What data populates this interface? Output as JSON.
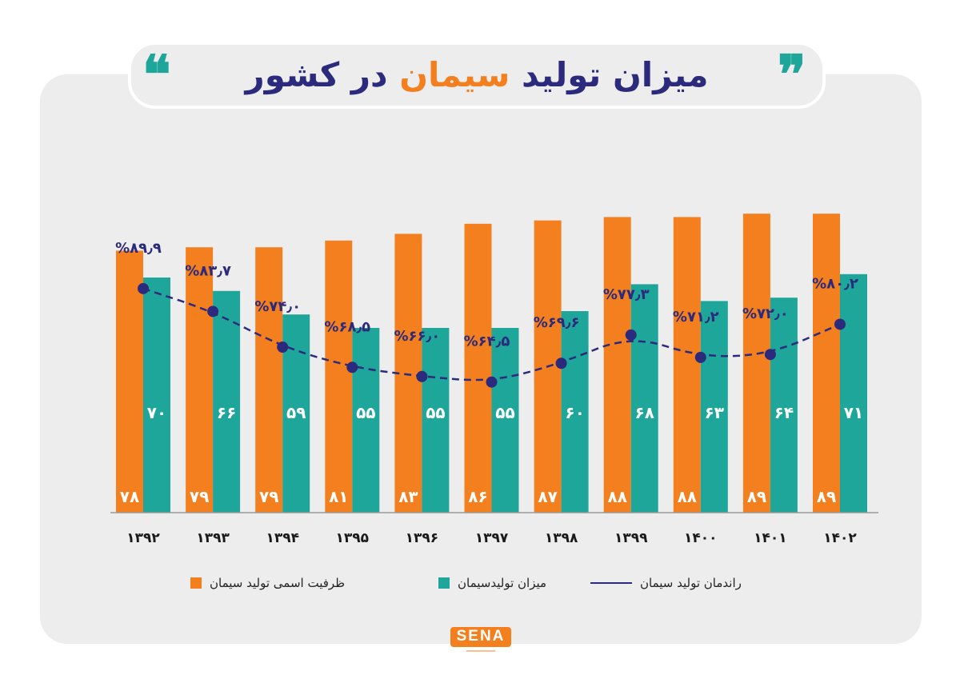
{
  "header": {
    "title_part1": "میزان تولید",
    "title_accent": "سیمان",
    "title_part2": "در کشور",
    "quote_open": "❝",
    "quote_close": "❞"
  },
  "chart_data": {
    "type": "bar",
    "categories": [
      "۱۳۹۲",
      "۱۳۹۳",
      "۱۳۹۴",
      "۱۳۹۵",
      "۱۳۹۶",
      "۱۳۹۷",
      "۱۳۹۸",
      "۱۳۹۹",
      "۱۴۰۰",
      "۱۴۰۱",
      "۱۴۰۲"
    ],
    "series": [
      {
        "name": "ظرفیت اسمی تولید سیمان",
        "color": "#f47f1f",
        "values": [
          78,
          79,
          79,
          81,
          83,
          86,
          87,
          88,
          88,
          89,
          89
        ],
        "labels": [
          "۷۸",
          "۷۹",
          "۷۹",
          "۸۱",
          "۸۳",
          "۸۶",
          "۸۷",
          "۸۸",
          "۸۸",
          "۸۹",
          "۸۹"
        ]
      },
      {
        "name": "میزان تولیدسیمان",
        "color": "#1ea69a",
        "values": [
          70,
          66,
          59,
          55,
          55,
          55,
          60,
          68,
          63,
          64,
          71
        ],
        "labels": [
          "۷۰",
          "۶۶",
          "۵۹",
          "۵۵",
          "۵۵",
          "۵۵",
          "۶۰",
          "۶۸",
          "۶۳",
          "۶۴",
          "۷۱"
        ]
      },
      {
        "name": "راندمان تولید سیمان",
        "type": "line",
        "color": "#2b2a7c",
        "values": [
          89.9,
          83.7,
          74.0,
          68.5,
          66.0,
          64.5,
          69.6,
          77.3,
          71.2,
          72.0,
          80.2
        ],
        "labels": [
          "%۸۹٫۹",
          "%۸۳٫۷",
          "%۷۴٫۰",
          "%۶۸٫۵",
          "%۶۶٫۰",
          "%۶۴٫۵",
          "%۶۹٫۶",
          "%۷۷٫۳",
          "%۷۱٫۲",
          "%۷۲٫۰",
          "%۸۰٫۲"
        ]
      }
    ],
    "title": "میزان تولید سیمان در کشور",
    "xlabel": "",
    "ylabel": "",
    "ylim": [
      0,
      95
    ],
    "grid": false,
    "legend_position": "bottom"
  },
  "logo": {
    "text": "SENA"
  }
}
